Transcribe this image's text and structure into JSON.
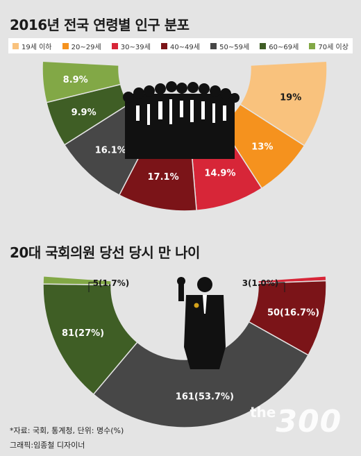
{
  "charts": {
    "population": {
      "title": "2016년 전국 연령별 인구 분포",
      "legend": [
        {
          "label": "19세 이하",
          "color": "#f9c27d"
        },
        {
          "label": "20~29세",
          "color": "#f5921e"
        },
        {
          "label": "30~39세",
          "color": "#d72638"
        },
        {
          "label": "40~49세",
          "color": "#7b1418"
        },
        {
          "label": "50~59세",
          "color": "#474747"
        },
        {
          "label": "60~69세",
          "color": "#3f5e25"
        },
        {
          "label": "70세 이상",
          "color": "#82a846"
        }
      ]
    },
    "lawmakers": {
      "title": "20대 국회의원 당선 당시 만 나이"
    }
  },
  "chart_data": [
    {
      "type": "pie",
      "title": "2016년 전국 연령별 인구 분포",
      "unit": "%",
      "categories": [
        "19세 이하",
        "20~29세",
        "30~39세",
        "40~49세",
        "50~59세",
        "60~69세",
        "70세 이상"
      ],
      "values": [
        19,
        13,
        14.9,
        17.1,
        16.1,
        9.9,
        8.9
      ],
      "labels": [
        "19",
        "13",
        "14.9",
        "17.1",
        "16.1",
        "9.9",
        "8.9"
      ],
      "colors": [
        "#f9c27d",
        "#f5921e",
        "#d72638",
        "#7b1418",
        "#474747",
        "#3f5e25",
        "#82a846"
      ]
    },
    {
      "type": "pie",
      "title": "20대 국회의원 당선 당시 만 나이",
      "unit": "명수(%)",
      "categories": [
        "30~39세",
        "40~49세",
        "50~59세",
        "60~69세",
        "70세 이상"
      ],
      "values": [
        3,
        50,
        161,
        81,
        5
      ],
      "percents": [
        1.0,
        16.7,
        53.7,
        27,
        1.7
      ],
      "labels": [
        "3(1.0%)",
        "50(16.7%)",
        "161(53.7%)",
        "81(27%)",
        "5(1.7%)"
      ],
      "colors": [
        "#d72638",
        "#7b1418",
        "#474747",
        "#3f5e25",
        "#82a846"
      ]
    }
  ],
  "footer": {
    "source": "*자료: 국회, 통계청, 단위: 명수(%)",
    "credit": "그래픽:임종철 디자이너"
  },
  "brand": {
    "small": "the",
    "big": "300"
  }
}
